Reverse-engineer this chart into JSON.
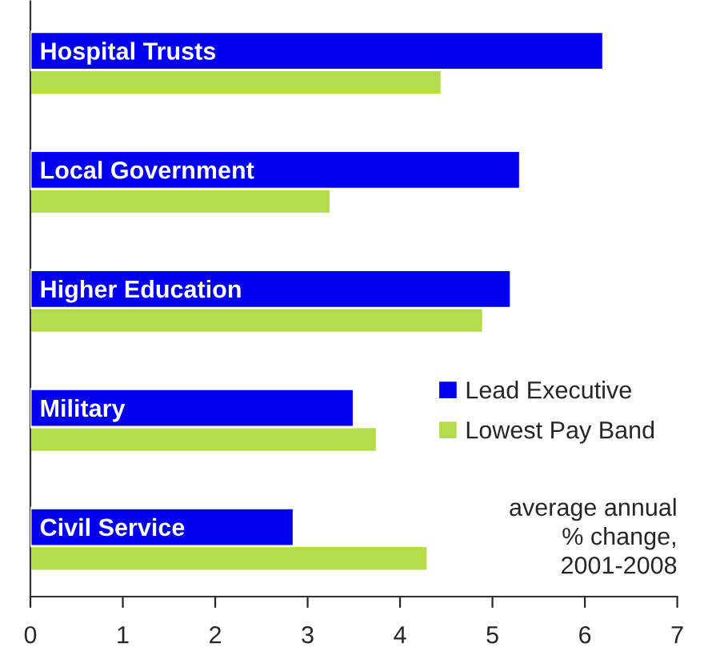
{
  "chart_data": {
    "type": "bar",
    "orientation": "horizontal",
    "categories": [
      "Hospital Trusts",
      "Local Government",
      "Higher Education",
      "Military",
      "Civil Service"
    ],
    "series": [
      {
        "name": "Lead Executive",
        "color": "#0000ee",
        "values": [
          6.2,
          5.3,
          5.2,
          3.5,
          2.85
        ]
      },
      {
        "name": "Lowest Pay Band",
        "color": "#b5dc4c",
        "values": [
          4.45,
          3.25,
          4.9,
          3.75,
          4.3
        ]
      }
    ],
    "xlim": [
      0,
      7
    ],
    "xticks": [
      0,
      1,
      2,
      3,
      4,
      5,
      6,
      7
    ],
    "tick_labels": "x",
    "grid": false,
    "legend": "right",
    "annotations": [
      "average annual\n% change,\n2001-2008"
    ]
  }
}
